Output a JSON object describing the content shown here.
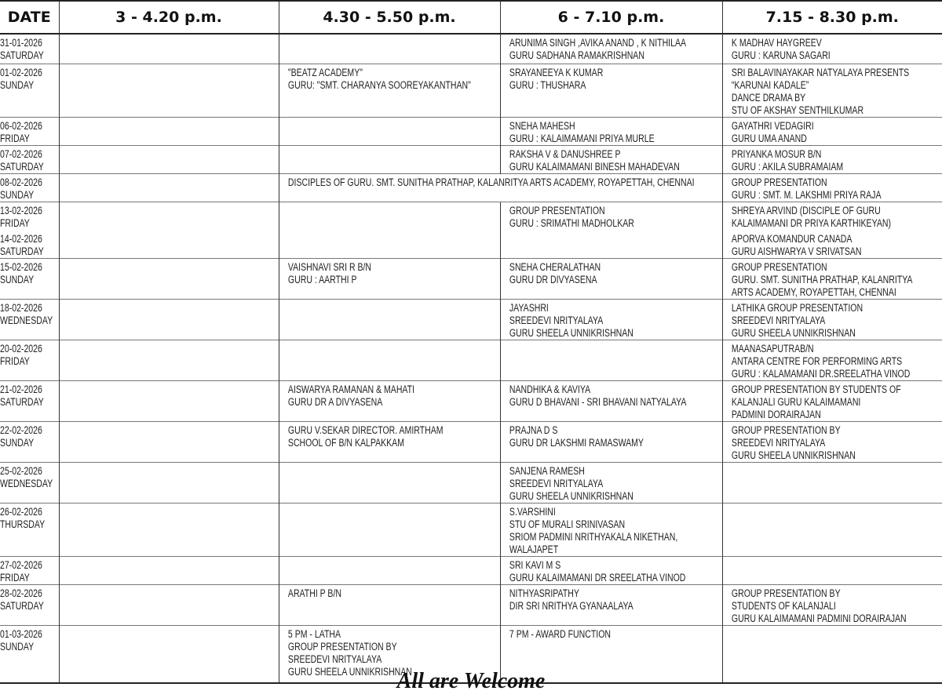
{
  "header": {
    "columns": [
      "DATE",
      "3 - 4.20 p.m.",
      "4.30 - 5.50 p.m.",
      "6 - 7.10 p.m.",
      "7.15 - 8.30 p.m."
    ]
  },
  "rows": [
    {
      "dates": [
        {
          "date": "31-01-2026",
          "day": "SATURDAY"
        }
      ],
      "slots": [
        [],
        [],
        [
          "ARUNIMA SINGH ,AVIKA ANAND , K NITHILAA",
          "GURU SADHANA RAMAKRISHNAN"
        ],
        [
          "K MADHAV HAYGREEV",
          "GURU : KARUNA SAGARI"
        ]
      ]
    },
    {
      "dates": [
        {
          "date": "01-02-2026",
          "day": "SUNDAY"
        }
      ],
      "slots": [
        [],
        [
          " \"BEATZ ACADEMY\"",
          "GURU: \"SMT. CHARANYA SOOREYAKANTHAN\""
        ],
        [
          "SRAYANEEYA K KUMAR",
          "GURU : THUSHARA"
        ],
        [
          "SRI BALAVINAYAKAR NATYALAYA PRESENTS",
          "“KARUNAI KADALE”",
          "DANCE DRAMA BY",
          "STU OF AKSHAY SENTHILKUMAR"
        ]
      ]
    },
    {
      "dates": [
        {
          "date": "06-02-2026",
          "day": "FRIDAY"
        }
      ],
      "slots": [
        [],
        [],
        [
          "SNEHA MAHESH",
          "GURU : KALAIMAMANI PRIYA MURLE"
        ],
        [
          "GAYATHRI VEDAGIRI",
          "GURU UMA ANAND"
        ]
      ]
    },
    {
      "dates": [
        {
          "date": "07-02-2026",
          "day": "SATURDAY"
        }
      ],
      "slots": [
        [],
        [],
        [
          "RAKSHA V & DANUSHREE P",
          "GURU KALAIMAMANI BINESH MAHADEVAN"
        ],
        [
          "PRIYANKA MOSUR B/N",
          "GURU : AKILA SUBRAMAIAM"
        ]
      ]
    },
    {
      "dates": [
        {
          "date": "08-02-2026",
          "day": "SUNDAY"
        }
      ],
      "span": true,
      "slots": [
        [],
        [
          "DISCIPLES OF GURU. SMT. SUNITHA PRATHAP, KALANRITYA ARTS ACADEMY, ROYAPETTAH, CHENNAI"
        ],
        [
          "GROUP PRESENTATION",
          "GURU : SMT. M. LAKSHMI PRIYA RAJA"
        ]
      ]
    },
    {
      "dates": [
        {
          "date": "13-02-2026",
          "day": "FRIDAY"
        },
        {
          "date": "14-02-2026",
          "day": "SATURDAY"
        }
      ],
      "slots": [
        [],
        [],
        [
          "GROUP PRESENTATION",
          "GURU : SRIMATHI MADHOLKAR"
        ],
        [
          "SHREYA ARVIND (DISCIPLE OF GURU",
          "KALAIMAMANI DR PRIYA KARTHIKEYAN)",
          "APORVA KOMANDUR   CANADA",
          "GURU AISHWARYA V SRIVATSAN"
        ]
      ]
    },
    {
      "dates": [
        {
          "date": "15-02-2026",
          "day": "SUNDAY"
        }
      ],
      "slots": [
        [],
        [
          "VAISHNAVI SRI R  B/N",
          "GURU : AARTHI P"
        ],
        [
          "SNEHA CHERALATHAN",
          "GURU DR DIVYASENA"
        ],
        [
          "GROUP PRESENTATION",
          "GURU. SMT. SUNITHA PRATHAP, KALANRITYA",
          "ARTS ACADEMY, ROYAPETTAH, CHENNAI"
        ]
      ]
    },
    {
      "dates": [
        {
          "date": "18-02-2026",
          "day": "WEDNESDAY"
        }
      ],
      "slots": [
        [],
        [],
        [
          "JAYASHRI",
          "SREEDEVI NRITYALAYA",
          "GURU SHEELA UNNIKRISHNAN"
        ],
        [
          "LATHIKA GROUP PRESENTATION",
          "SREEDEVI NRITYALAYA",
          "GURU SHEELA UNNIKRISHNAN"
        ]
      ]
    },
    {
      "dates": [
        {
          "date": "20-02-2026",
          "day": "FRIDAY"
        }
      ],
      "slots": [
        [],
        [],
        [],
        [
          "MAANASAPUTRAB/N",
          "ANTARA CENTRE FOR PERFORMING ARTS",
          "GURU : KALAMAMANI DR.SREELATHA VINOD"
        ]
      ]
    },
    {
      "dates": [
        {
          "date": "21-02-2026",
          "day": "SATURDAY"
        }
      ],
      "slots": [
        [],
        [
          "AISWARYA RAMANAN & MAHATI",
          "GURU DR A DIVYASENA"
        ],
        [
          "NANDHIKA & KAVIYA",
          "GURU D BHAVANI - SRI BHAVANI NATYALAYA"
        ],
        [
          "GROUP PRESENTATION BY STUDENTS OF",
          "KALANJALI GURU KALAIMAMANI",
          "PADMINI DORAIRAJAN"
        ]
      ]
    },
    {
      "dates": [
        {
          "date": "22-02-2026",
          "day": "SUNDAY"
        }
      ],
      "slots": [
        [],
        [
          "GURU V.SEKAR DIRECTOR. AMIRTHAM",
          "SCHOOL OF B/N  KALPAKKAM"
        ],
        [
          "PRAJNA D S",
          "GURU DR LAKSHMI RAMASWAMY"
        ],
        [
          "GROUP PRESENTATION BY",
          "SREEDEVI NRITYALAYA",
          "GURU SHEELA UNNIKRISHNAN"
        ]
      ]
    },
    {
      "dates": [
        {
          "date": "25-02-2026",
          "day": "WEDNESDAY"
        }
      ],
      "slots": [
        [],
        [],
        [
          "SANJENA RAMESH",
          "SREEDEVI NRITYALAYA",
          "GURU SHEELA UNNIKRISHNAN"
        ],
        []
      ]
    },
    {
      "dates": [
        {
          "date": "26-02-2026",
          "day": "THURSDAY"
        }
      ],
      "slots": [
        [],
        [],
        [
          "S.VARSHINI",
          "STU OF MURALI SRINIVASAN",
          "SRIOM PADMINI NRITHYAKALA NIKETHAN,",
          "WALAJAPET"
        ],
        []
      ]
    },
    {
      "dates": [
        {
          "date": "27-02-2026",
          "day": "FRIDAY"
        }
      ],
      "slots": [
        [],
        [],
        [
          "SRI KAVI M S",
          "GURU KALAIMAMANI DR SREELATHA VINOD"
        ],
        []
      ]
    },
    {
      "dates": [
        {
          "date": "28-02-2026",
          "day": "SATURDAY"
        }
      ],
      "slots": [
        [],
        [
          "ARATHI P  B/N"
        ],
        [
          "NITHYASRIPATHY",
          "DIR SRI NRITHYA GYANAALAYA"
        ],
        [
          "GROUP PRESENTATION BY",
          "STUDENTS OF KALANJALI",
          "GURU KALAIMAMANI PADMINI DORAIRAJAN"
        ]
      ]
    },
    {
      "dates": [
        {
          "date": "01-03-2026",
          "day": "SUNDAY"
        }
      ],
      "slots": [
        [],
        [
          "5 PM - LATHA",
          "GROUP PRESENTATION BY",
          "SREEDEVI NRITYALAYA",
          "GURU SHEELA UNNIKRISHNAN"
        ],
        [
          "7 PM - AWARD FUNCTION"
        ],
        []
      ]
    }
  ],
  "footer": {
    "text": "All are Welcome"
  }
}
